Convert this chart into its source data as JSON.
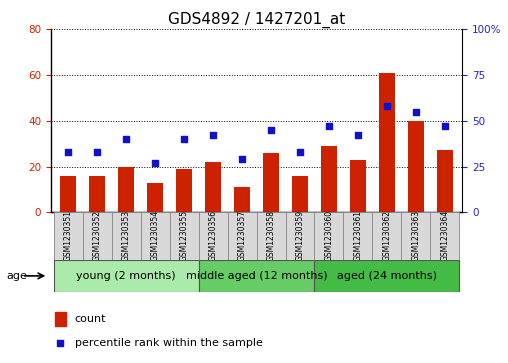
{
  "title": "GDS4892 / 1427201_at",
  "samples": [
    "GSM1230351",
    "GSM1230352",
    "GSM1230353",
    "GSM1230354",
    "GSM1230355",
    "GSM1230356",
    "GSM1230357",
    "GSM1230358",
    "GSM1230359",
    "GSM1230360",
    "GSM1230361",
    "GSM1230362",
    "GSM1230363",
    "GSM1230364"
  ],
  "counts": [
    16,
    16,
    20,
    13,
    19,
    22,
    11,
    26,
    16,
    29,
    23,
    61,
    40,
    27
  ],
  "percentiles": [
    33,
    33,
    40,
    27,
    40,
    42,
    29,
    45,
    33,
    47,
    42,
    58,
    55,
    47
  ],
  "groups": [
    {
      "label": "young (2 months)",
      "start": 0,
      "end": 5,
      "color": "#AAEAAA"
    },
    {
      "label": "middle aged (12 months)",
      "start": 5,
      "end": 9,
      "color": "#66CC66"
    },
    {
      "label": "aged (24 months)",
      "start": 9,
      "end": 14,
      "color": "#44BB44"
    }
  ],
  "bar_color": "#CC2200",
  "dot_color": "#1111CC",
  "left_ylim": [
    0,
    80
  ],
  "right_ylim": [
    0,
    100
  ],
  "left_yticks": [
    0,
    20,
    40,
    60,
    80
  ],
  "right_yticks": [
    0,
    25,
    50,
    75,
    100
  ],
  "right_yticklabels": [
    "0",
    "25",
    "50",
    "75",
    "100%"
  ],
  "left_ylabel_color": "#CC2200",
  "right_ylabel_color": "#2222CC",
  "bg_color": "#FFFFFF",
  "sample_box_color": "#D8D8D8",
  "age_label": "age",
  "legend_count_label": "count",
  "legend_percentile_label": "percentile rank within the sample",
  "title_fontsize": 11,
  "tick_fontsize": 7.5,
  "sample_fontsize": 5.5,
  "group_label_fontsize": 8,
  "legend_fontsize": 8
}
